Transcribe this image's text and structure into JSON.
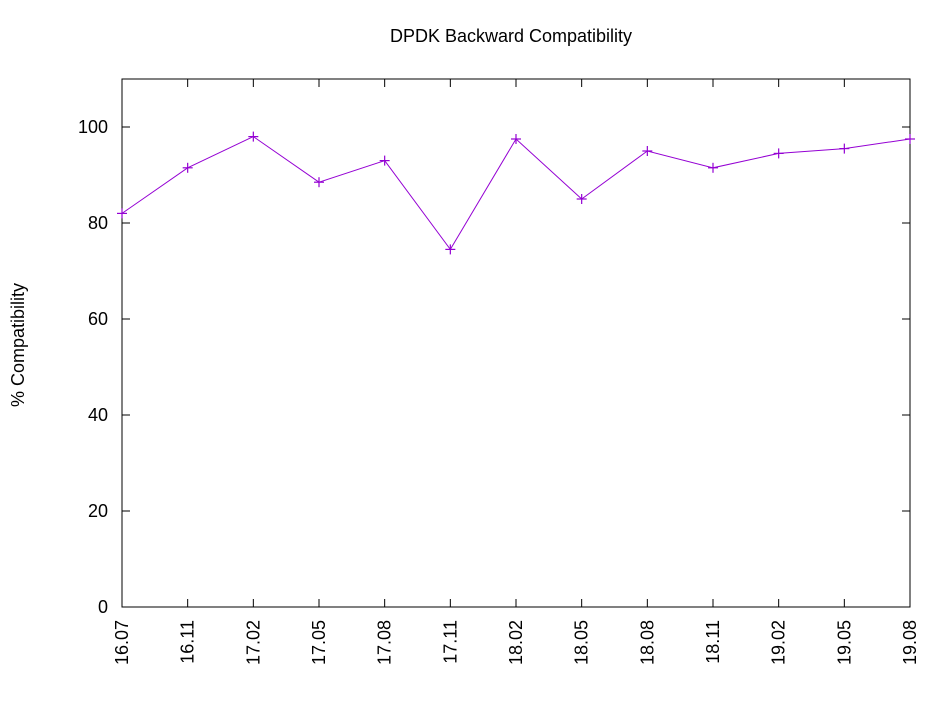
{
  "chart_data": {
    "type": "line",
    "title": "DPDK Backward Compatibility",
    "xlabel": "",
    "ylabel": "% Compatibility",
    "categories": [
      "16.07",
      "16.11",
      "17.02",
      "17.05",
      "17.08",
      "17.11",
      "18.02",
      "18.05",
      "18.08",
      "18.11",
      "19.02",
      "19.05",
      "19.08"
    ],
    "series": [
      {
        "values": [
          82,
          91.5,
          98,
          88.5,
          93,
          74.5,
          97.5,
          85,
          95,
          91.5,
          94.5,
          95.5,
          97.5
        ]
      }
    ],
    "ylim": [
      0,
      110
    ],
    "yticks": [
      0,
      20,
      40,
      60,
      80,
      100
    ],
    "grid": false,
    "marker": "plus",
    "colors": {
      "series": "#9400d3",
      "axis": "#000000",
      "text": "#000000"
    }
  }
}
